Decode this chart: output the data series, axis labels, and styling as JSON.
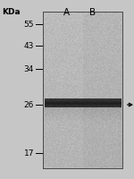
{
  "fig_width": 1.5,
  "fig_height": 2.01,
  "dpi": 100,
  "outer_bg": "#c8c8c8",
  "gel_bg": "#b4b4b4",
  "kda_label": "KDa",
  "lane_labels": [
    "A",
    "B"
  ],
  "marker_kda": [
    55,
    43,
    34,
    26,
    17
  ],
  "font_size_kda": 6.5,
  "font_size_label": 7.5
}
